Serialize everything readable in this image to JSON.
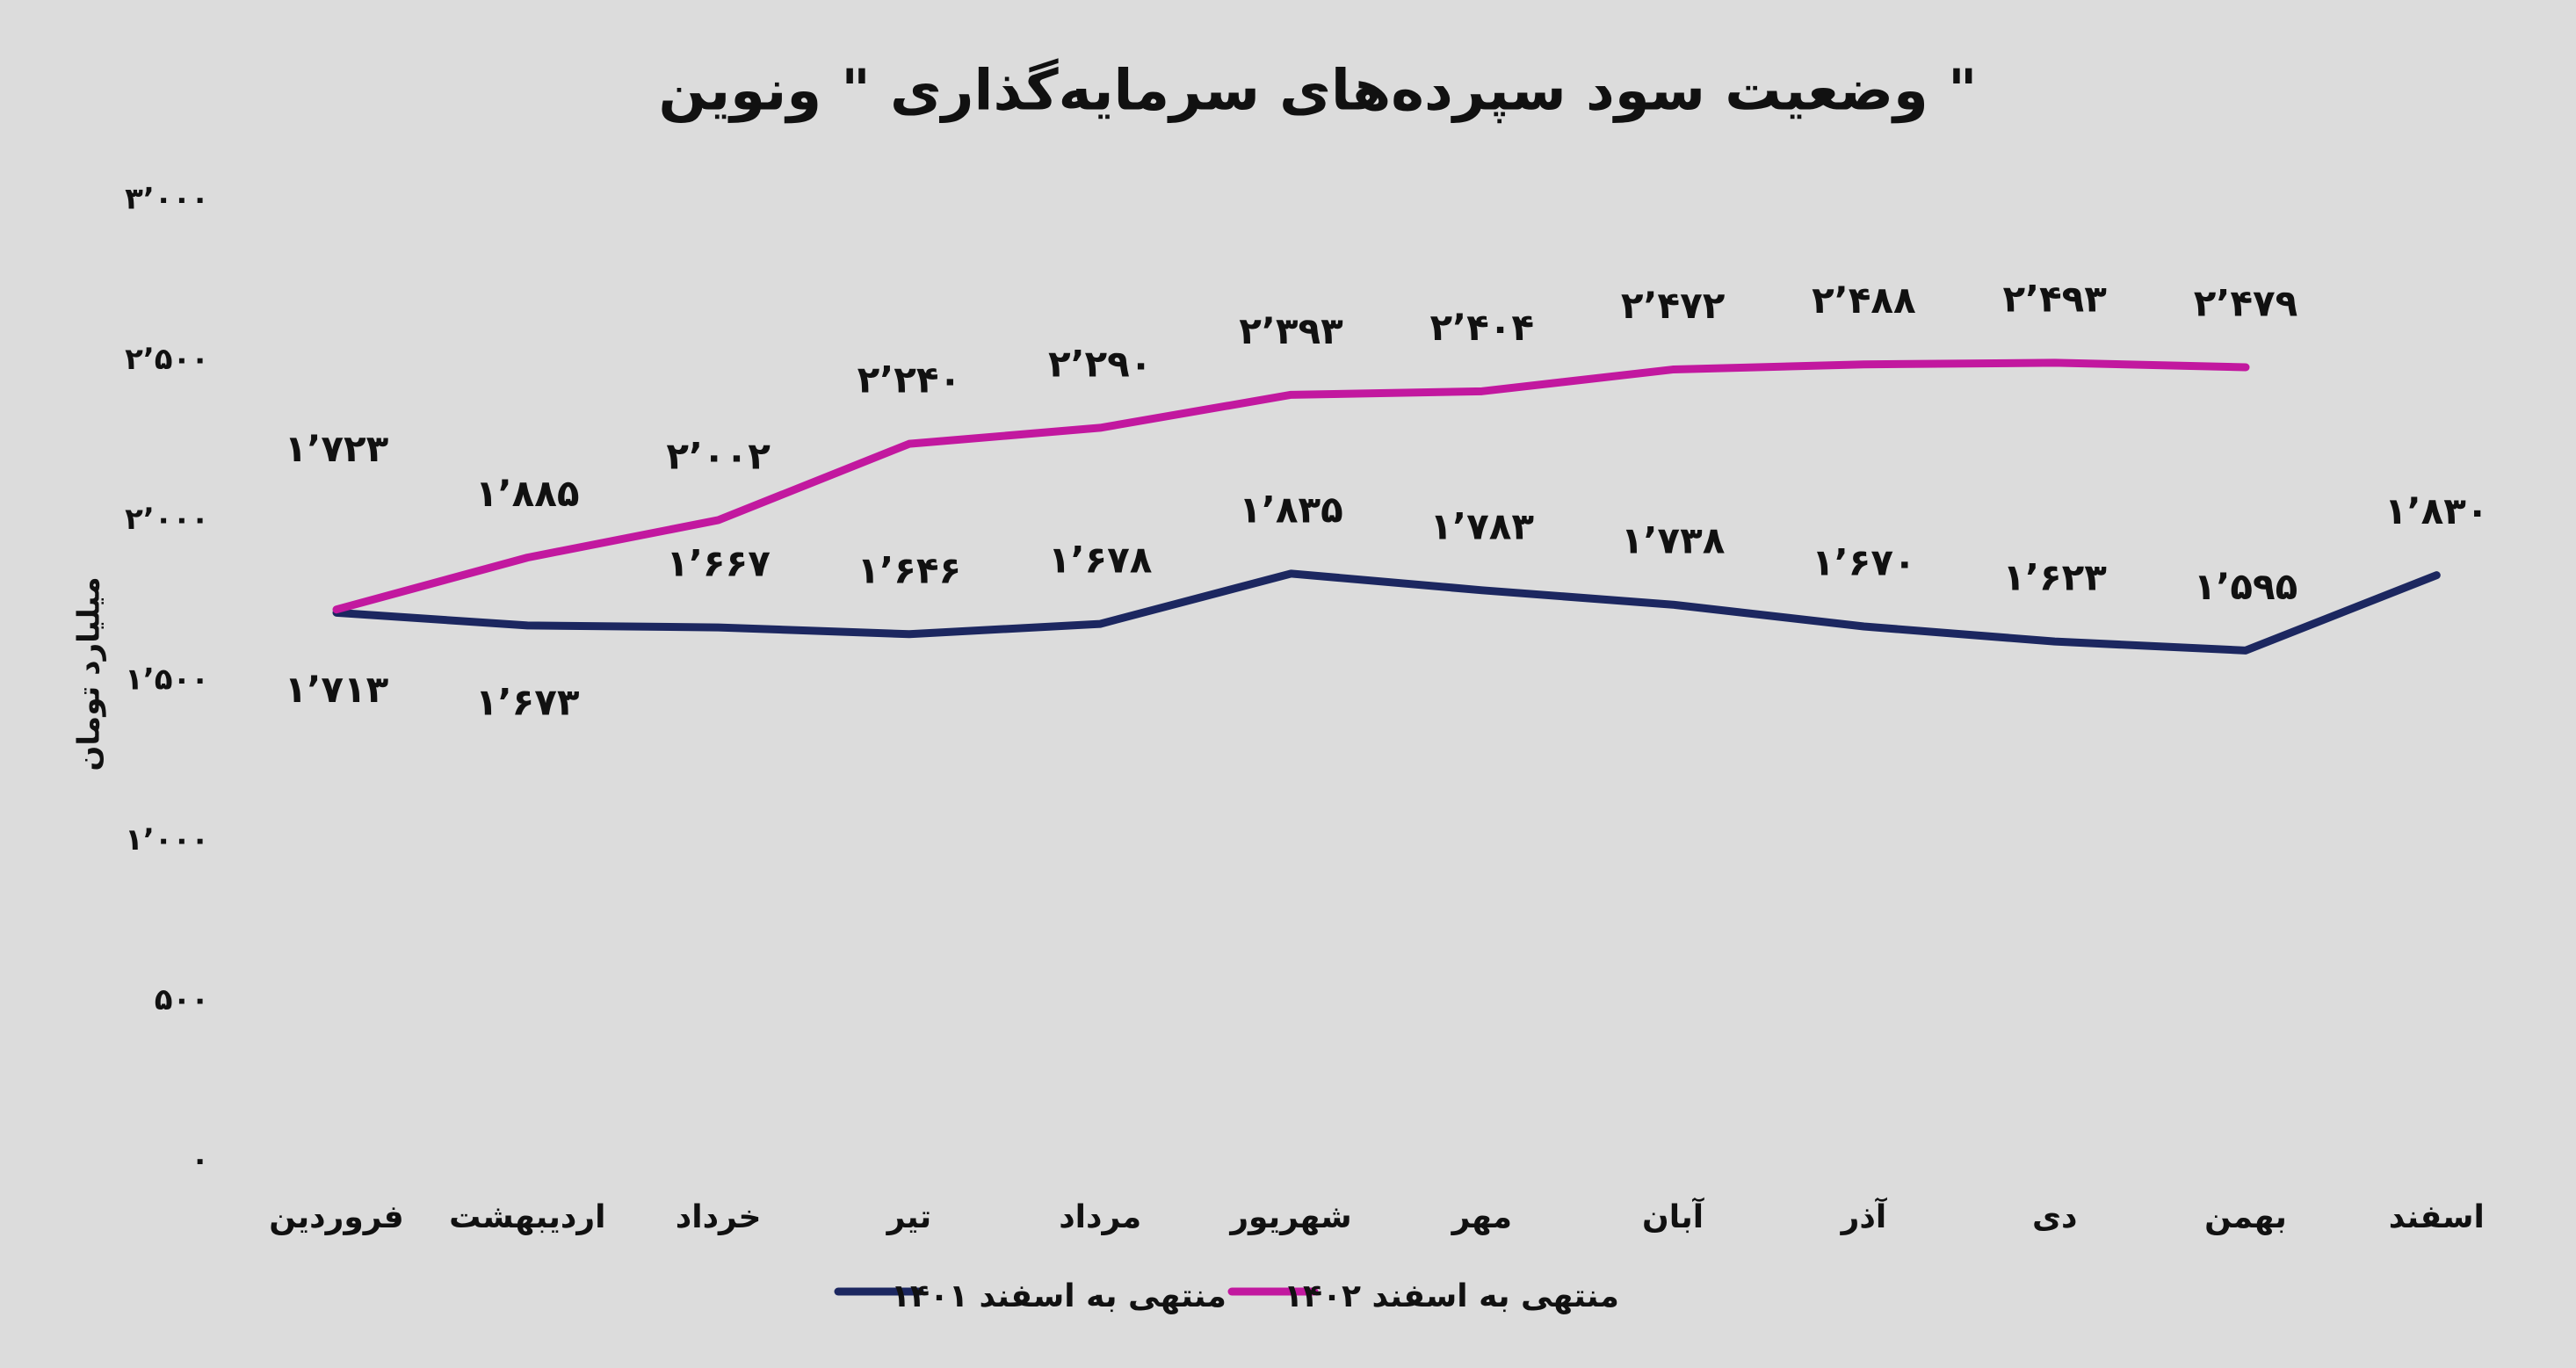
{
  "chart_data": {
    "type": "line",
    "title": "وضعیت سود سپرده‌های سرمایه‌گذاری \" ونوین \"",
    "y_label": "میلیارد تومان",
    "categories": [
      "فروردین",
      "اردیبهشت",
      "خرداد",
      "تیر",
      "مرداد",
      "شهریور",
      "مهر",
      "آبان",
      "آذر",
      "دی",
      "بهمن",
      "اسفند"
    ],
    "series": [
      {
        "name": "منتهی به اسفند ۱۴۰۱",
        "color": "#1c2760",
        "values": [
          1713,
          1673,
          1667,
          1646,
          1678,
          1835,
          1783,
          1738,
          1670,
          1623,
          1595,
          1830
        ],
        "value_labels": [
          "۱٬۷۱۳",
          "۱٬۶۷۳",
          "۱٬۶۶۷",
          "۱٬۶۴۶",
          "۱٬۶۷۸",
          "۱٬۸۳۵",
          "۱٬۷۸۳",
          "۱٬۷۳۸",
          "۱٬۶۷۰",
          "۱٬۶۲۳",
          "۱٬۵۹۵",
          "۱٬۸۳۰"
        ]
      },
      {
        "name": "منتهی به اسفند ۱۴۰۲",
        "color": "#c2189f",
        "values": [
          1723,
          1885,
          2002,
          2240,
          2290,
          2393,
          2404,
          2472,
          2488,
          2493,
          2479,
          null
        ],
        "value_labels": [
          "۱٬۷۲۳",
          "۱٬۸۸۵",
          "۲٬۰۰۲",
          "۲٬۲۴۰",
          "۲٬۲۹۰",
          "۲٬۳۹۳",
          "۲٬۴۰۴",
          "۲٬۴۷۲",
          "۲٬۴۸۸",
          "۲٬۴۹۳",
          "۲٬۴۷۹",
          null
        ]
      }
    ],
    "ylim": [
      0,
      3000
    ],
    "yticks": [
      {
        "value": 0,
        "label": "۰"
      },
      {
        "value": 500,
        "label": "۵۰۰"
      },
      {
        "value": 1000,
        "label": "۱٬۰۰۰"
      },
      {
        "value": 1500,
        "label": "۱٬۵۰۰"
      },
      {
        "value": 2000,
        "label": "۲٬۰۰۰"
      },
      {
        "value": 2500,
        "label": "۲٬۵۰۰"
      },
      {
        "value": 3000,
        "label": "۳٬۰۰۰"
      }
    ],
    "grid": false,
    "legend": "bottom"
  }
}
